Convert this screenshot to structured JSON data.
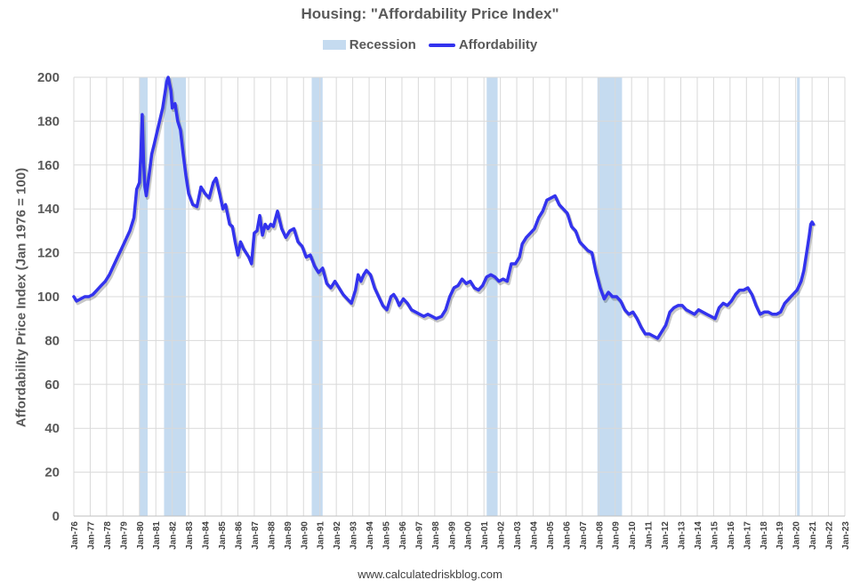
{
  "chart_data": {
    "type": "line",
    "title": "Housing: \"Affordability Price Index\"",
    "ylabel": "Affordability Price Index (Jan 1976 = 100)",
    "xlabel": "",
    "ylim": [
      0,
      200
    ],
    "yticks": [
      0,
      20,
      40,
      60,
      80,
      100,
      120,
      140,
      160,
      180,
      200
    ],
    "xlim": [
      "1976-01",
      "2023-01"
    ],
    "xticks": [
      "Jan-76",
      "Jan-77",
      "Jan-78",
      "Jan-79",
      "Jan-80",
      "Jan-81",
      "Jan-82",
      "Jan-83",
      "Jan-84",
      "Jan-85",
      "Jan-86",
      "Jan-87",
      "Jan-88",
      "Jan-89",
      "Jan-90",
      "Jan-91",
      "Jan-92",
      "Jan-93",
      "Jan-94",
      "Jan-95",
      "Jan-96",
      "Jan-97",
      "Jan-98",
      "Jan-99",
      "Jan-00",
      "Jan-01",
      "Jan-02",
      "Jan-03",
      "Jan-04",
      "Jan-05",
      "Jan-06",
      "Jan-07",
      "Jan-08",
      "Jan-09",
      "Jan-10",
      "Jan-11",
      "Jan-12",
      "Jan-13",
      "Jan-14",
      "Jan-15",
      "Jan-16",
      "Jan-17",
      "Jan-18",
      "Jan-19",
      "Jan-20",
      "Jan-21",
      "Jan-22",
      "Jan-23"
    ],
    "grid": true,
    "legend_position": "top-center",
    "legend": [
      "Recession",
      "Affordability"
    ],
    "recession_color": "#c5dbf0",
    "line_color": "#3333ee",
    "recessions": [
      {
        "start": "1980-01",
        "end": "1980-07"
      },
      {
        "start": "1981-07",
        "end": "1982-11"
      },
      {
        "start": "1990-07",
        "end": "1991-03"
      },
      {
        "start": "2001-03",
        "end": "2001-11"
      },
      {
        "start": "2007-12",
        "end": "2009-06"
      },
      {
        "start": "2020-02",
        "end": "2020-04"
      }
    ],
    "series": [
      {
        "name": "Affordability",
        "points": [
          [
            "1976-01",
            100
          ],
          [
            "1976-03",
            98
          ],
          [
            "1976-06",
            99
          ],
          [
            "1976-09",
            100
          ],
          [
            "1976-12",
            100
          ],
          [
            "1977-03",
            101
          ],
          [
            "1977-06",
            103
          ],
          [
            "1977-09",
            105
          ],
          [
            "1977-12",
            107
          ],
          [
            "1978-03",
            110
          ],
          [
            "1978-06",
            114
          ],
          [
            "1978-09",
            118
          ],
          [
            "1978-12",
            122
          ],
          [
            "1979-03",
            126
          ],
          [
            "1979-06",
            130
          ],
          [
            "1979-09",
            136
          ],
          [
            "1979-11",
            149
          ],
          [
            "1980-01",
            152
          ],
          [
            "1980-02",
            164
          ],
          [
            "1980-03",
            183
          ],
          [
            "1980-04",
            162
          ],
          [
            "1980-05",
            150
          ],
          [
            "1980-06",
            146
          ],
          [
            "1980-08",
            155
          ],
          [
            "1980-10",
            165
          ],
          [
            "1980-12",
            170
          ],
          [
            "1981-03",
            178
          ],
          [
            "1981-06",
            186
          ],
          [
            "1981-09",
            198
          ],
          [
            "1981-10",
            200
          ],
          [
            "1981-12",
            194
          ],
          [
            "1982-01",
            186
          ],
          [
            "1982-03",
            188
          ],
          [
            "1982-05",
            180
          ],
          [
            "1982-07",
            176
          ],
          [
            "1982-09",
            165
          ],
          [
            "1982-11",
            155
          ],
          [
            "1983-01",
            147
          ],
          [
            "1983-04",
            142
          ],
          [
            "1983-07",
            141
          ],
          [
            "1983-10",
            150
          ],
          [
            "1984-01",
            147
          ],
          [
            "1984-04",
            145
          ],
          [
            "1984-07",
            152
          ],
          [
            "1984-09",
            154
          ],
          [
            "1984-12",
            146
          ],
          [
            "1985-02",
            140
          ],
          [
            "1985-04",
            142
          ],
          [
            "1985-07",
            133
          ],
          [
            "1985-09",
            132
          ],
          [
            "1985-11",
            125
          ],
          [
            "1986-01",
            119
          ],
          [
            "1986-03",
            125
          ],
          [
            "1986-05",
            122
          ],
          [
            "1986-07",
            120
          ],
          [
            "1986-09",
            118
          ],
          [
            "1986-11",
            115
          ],
          [
            "1987-01",
            129
          ],
          [
            "1987-03",
            130
          ],
          [
            "1987-05",
            137
          ],
          [
            "1987-07",
            128
          ],
          [
            "1987-09",
            133
          ],
          [
            "1987-11",
            131
          ],
          [
            "1988-01",
            133
          ],
          [
            "1988-03",
            132
          ],
          [
            "1988-06",
            139
          ],
          [
            "1988-09",
            131
          ],
          [
            "1988-12",
            127
          ],
          [
            "1989-03",
            130
          ],
          [
            "1989-06",
            131
          ],
          [
            "1989-09",
            125
          ],
          [
            "1989-12",
            123
          ],
          [
            "1990-03",
            118
          ],
          [
            "1990-06",
            119
          ],
          [
            "1990-09",
            114
          ],
          [
            "1990-12",
            111
          ],
          [
            "1991-03",
            113
          ],
          [
            "1991-06",
            106
          ],
          [
            "1991-09",
            104
          ],
          [
            "1991-12",
            107
          ],
          [
            "1992-03",
            104
          ],
          [
            "1992-06",
            101
          ],
          [
            "1992-09",
            99
          ],
          [
            "1992-12",
            97
          ],
          [
            "1993-03",
            103
          ],
          [
            "1993-05",
            110
          ],
          [
            "1993-07",
            107
          ],
          [
            "1993-09",
            110
          ],
          [
            "1993-11",
            112
          ],
          [
            "1994-02",
            110
          ],
          [
            "1994-05",
            104
          ],
          [
            "1994-08",
            100
          ],
          [
            "1994-11",
            96
          ],
          [
            "1995-02",
            94
          ],
          [
            "1995-05",
            100
          ],
          [
            "1995-07",
            101
          ],
          [
            "1995-09",
            99
          ],
          [
            "1995-11",
            96
          ],
          [
            "1996-02",
            99
          ],
          [
            "1996-05",
            97
          ],
          [
            "1996-08",
            94
          ],
          [
            "1996-11",
            93
          ],
          [
            "1997-02",
            92
          ],
          [
            "1997-05",
            91
          ],
          [
            "1997-08",
            92
          ],
          [
            "1997-11",
            91
          ],
          [
            "1998-02",
            90
          ],
          [
            "1998-06",
            91
          ],
          [
            "1998-09",
            94
          ],
          [
            "1998-12",
            100
          ],
          [
            "1999-03",
            104
          ],
          [
            "1999-06",
            105
          ],
          [
            "1999-09",
            108
          ],
          [
            "1999-12",
            106
          ],
          [
            "2000-03",
            107
          ],
          [
            "2000-06",
            104
          ],
          [
            "2000-09",
            103
          ],
          [
            "2000-12",
            105
          ],
          [
            "2001-03",
            109
          ],
          [
            "2001-06",
            110
          ],
          [
            "2001-09",
            109
          ],
          [
            "2001-12",
            107
          ],
          [
            "2002-03",
            108
          ],
          [
            "2002-06",
            107
          ],
          [
            "2002-09",
            115
          ],
          [
            "2002-12",
            115
          ],
          [
            "2003-03",
            118
          ],
          [
            "2003-05",
            124
          ],
          [
            "2003-08",
            127
          ],
          [
            "2003-11",
            129
          ],
          [
            "2004-02",
            131
          ],
          [
            "2004-05",
            136
          ],
          [
            "2004-08",
            139
          ],
          [
            "2004-11",
            144
          ],
          [
            "2005-02",
            145
          ],
          [
            "2005-05",
            146
          ],
          [
            "2005-08",
            142
          ],
          [
            "2005-11",
            140
          ],
          [
            "2006-02",
            138
          ],
          [
            "2006-05",
            132
          ],
          [
            "2006-08",
            130
          ],
          [
            "2006-11",
            125
          ],
          [
            "2007-02",
            123
          ],
          [
            "2007-05",
            121
          ],
          [
            "2007-08",
            120
          ],
          [
            "2007-11",
            111
          ],
          [
            "2008-02",
            104
          ],
          [
            "2008-05",
            99
          ],
          [
            "2008-08",
            102
          ],
          [
            "2008-11",
            100
          ],
          [
            "2009-02",
            100
          ],
          [
            "2009-05",
            98
          ],
          [
            "2009-08",
            94
          ],
          [
            "2009-11",
            92
          ],
          [
            "2010-02",
            93
          ],
          [
            "2010-05",
            90
          ],
          [
            "2010-08",
            86
          ],
          [
            "2010-11",
            83
          ],
          [
            "2011-02",
            83
          ],
          [
            "2011-05",
            82
          ],
          [
            "2011-08",
            81
          ],
          [
            "2011-11",
            84
          ],
          [
            "2012-02",
            87
          ],
          [
            "2012-05",
            93
          ],
          [
            "2012-08",
            95
          ],
          [
            "2012-11",
            96
          ],
          [
            "2013-02",
            96
          ],
          [
            "2013-05",
            94
          ],
          [
            "2013-08",
            93
          ],
          [
            "2013-11",
            92
          ],
          [
            "2014-02",
            94
          ],
          [
            "2014-05",
            93
          ],
          [
            "2014-08",
            92
          ],
          [
            "2014-11",
            91
          ],
          [
            "2015-02",
            90
          ],
          [
            "2015-05",
            95
          ],
          [
            "2015-08",
            97
          ],
          [
            "2015-11",
            96
          ],
          [
            "2016-02",
            98
          ],
          [
            "2016-05",
            101
          ],
          [
            "2016-08",
            103
          ],
          [
            "2016-11",
            103
          ],
          [
            "2017-02",
            104
          ],
          [
            "2017-05",
            101
          ],
          [
            "2017-08",
            96
          ],
          [
            "2017-11",
            92
          ],
          [
            "2018-02",
            93
          ],
          [
            "2018-05",
            93
          ],
          [
            "2018-08",
            92
          ],
          [
            "2018-11",
            92
          ],
          [
            "2019-02",
            93
          ],
          [
            "2019-05",
            97
          ],
          [
            "2019-08",
            99
          ],
          [
            "2019-11",
            101
          ],
          [
            "2020-02",
            103
          ],
          [
            "2020-05",
            107
          ],
          [
            "2020-07",
            112
          ],
          [
            "2020-09",
            120
          ],
          [
            "2020-11",
            128
          ],
          [
            "2020-12",
            133
          ],
          [
            "2021-01",
            134
          ],
          [
            "2021-02",
            133
          ]
        ]
      }
    ]
  },
  "footer": "www.calculatedriskblog.com"
}
